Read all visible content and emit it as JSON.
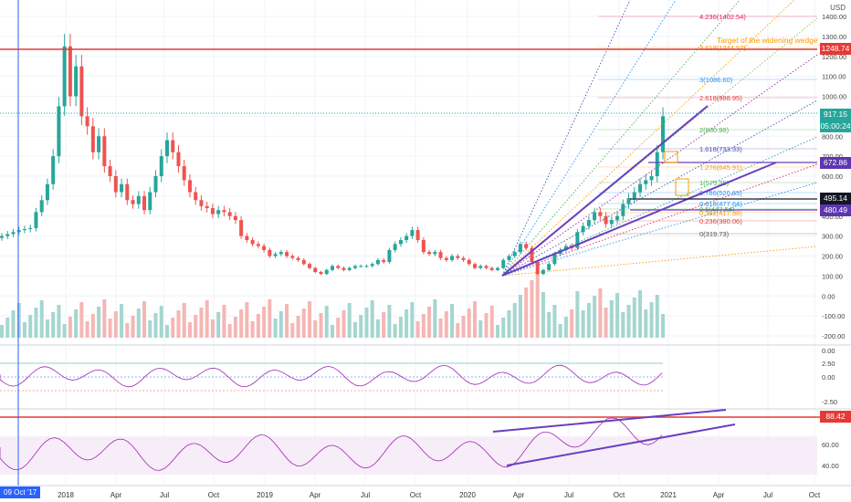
{
  "currency_label": "USD",
  "crosshair_date": "09 Oct '17",
  "price_tags": [
    {
      "label": "1248.74",
      "color": "#e53935"
    },
    {
      "label": "917.15",
      "color": "#26a69a"
    },
    {
      "label": "05:00:24",
      "color": "#26a69a"
    },
    {
      "label": "672.86",
      "color": "#5e35b1"
    },
    {
      "label": "495.14",
      "color": "#131722"
    },
    {
      "label": "480.49",
      "color": "#5e35b1"
    },
    {
      "label": "88.42",
      "color": "#e53935"
    }
  ],
  "annotation": "Target of the widening wedge",
  "fib_labels": [
    "4.236(1402.54)",
    "3.618(1244.57)",
    "3(1086.60)",
    "2.618(988.95)",
    "2(830.98)",
    "1.618(733.33)",
    "1.276(645.91)",
    "1(575.35)",
    "0.786(520.65)",
    "0.618(477.64)",
    "0.5(447.54)",
    "0.382(417.38)",
    "0.236(380.06)",
    "0(319.73)"
  ],
  "chart_data": {
    "type": "candlestick",
    "x_ticks": [
      "2018",
      "Apr",
      "Jul",
      "Oct",
      "2019",
      "Apr",
      "Jul",
      "Oct",
      "2020",
      "Apr",
      "Jul",
      "Oct",
      "2021",
      "Apr",
      "Jul",
      "Oct"
    ],
    "price_axis": [
      "1400.00",
      "1300.00",
      "1200.00",
      "1100.00",
      "1000.00",
      "900.00",
      "800.00",
      "700.00",
      "600.00",
      "500.00",
      "400.00",
      "300.00",
      "200.00",
      "100.00",
      "0.00",
      "-100.00",
      "-200.00"
    ],
    "macd_axis": [
      "0.00",
      "2.50",
      "0.00",
      "-2.50"
    ],
    "rsi_axis": [
      "60.00",
      "40.00"
    ],
    "ylim": [
      -200,
      1450
    ],
    "closes": [
      300,
      310,
      320,
      330,
      335,
      340,
      420,
      480,
      560,
      700,
      950,
      1250,
      1000,
      1150,
      900,
      850,
      720,
      800,
      650,
      600,
      520,
      560,
      480,
      460,
      500,
      430,
      520,
      600,
      700,
      780,
      720,
      650,
      580,
      520,
      480,
      450,
      440,
      410,
      430,
      420,
      400,
      380,
      300,
      280,
      260,
      250,
      230,
      200,
      210,
      220,
      200,
      190,
      180,
      160,
      140,
      120,
      110,
      130,
      150,
      140,
      130,
      140,
      150,
      150,
      150,
      160,
      180,
      170,
      230,
      260,
      280,
      300,
      330,
      280,
      220,
      210,
      220,
      190,
      180,
      200,
      190,
      180,
      160,
      140,
      150,
      140,
      130,
      140,
      180,
      200,
      220,
      260,
      240,
      170,
      110,
      130,
      160,
      210,
      230,
      250,
      240,
      320,
      350,
      380,
      420,
      400,
      360,
      380,
      400,
      460,
      490,
      520,
      560,
      580,
      600,
      720,
      900
    ]
  }
}
